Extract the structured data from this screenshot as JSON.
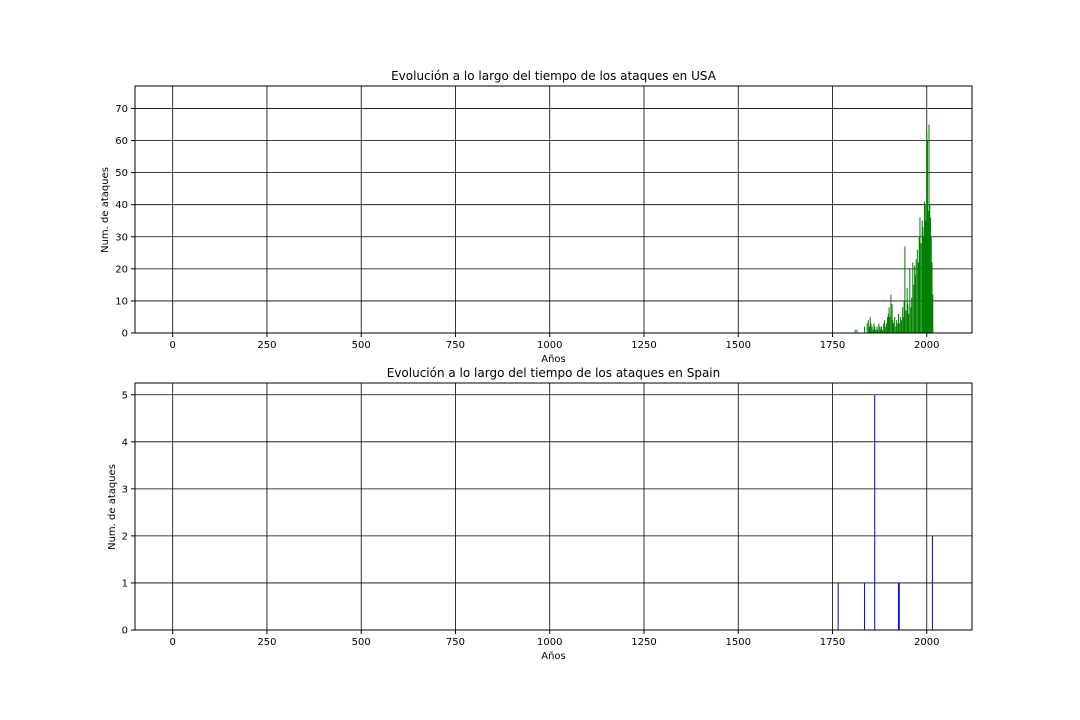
{
  "chart_data": [
    {
      "type": "bar",
      "title": "Evolución a lo largo del tiempo de los ataques en USA",
      "xlabel": "Años",
      "ylabel": "Num. de ataques",
      "xlim": [
        -100,
        2120
      ],
      "ylim": [
        0,
        77
      ],
      "xticks": [
        0,
        250,
        500,
        750,
        1000,
        1250,
        1500,
        1750,
        2000
      ],
      "yticks": [
        0,
        10,
        20,
        30,
        40,
        50,
        60,
        70
      ],
      "grid": true,
      "bar_color": "#008000",
      "x": [
        1810,
        1815,
        1835,
        1842,
        1845,
        1848,
        1850,
        1852,
        1855,
        1858,
        1860,
        1862,
        1865,
        1868,
        1870,
        1873,
        1876,
        1878,
        1880,
        1883,
        1886,
        1888,
        1890,
        1893,
        1896,
        1898,
        1900,
        1902,
        1905,
        1908,
        1910,
        1912,
        1915,
        1918,
        1920,
        1922,
        1925,
        1928,
        1930,
        1933,
        1936,
        1938,
        1940,
        1942,
        1945,
        1948,
        1950,
        1952,
        1955,
        1958,
        1960,
        1963,
        1966,
        1968,
        1970,
        1972,
        1975,
        1978,
        1980,
        1982,
        1985,
        1988,
        1990,
        1992,
        1994,
        1996,
        1998,
        2000,
        2002,
        2004,
        2006,
        2008,
        2010,
        2012,
        2014,
        2016
      ],
      "values": [
        1,
        1,
        2,
        3,
        4,
        2,
        5,
        3,
        2,
        1,
        3,
        2,
        1,
        2,
        1,
        3,
        2,
        1,
        2,
        1,
        3,
        4,
        2,
        3,
        5,
        6,
        8,
        5,
        12,
        9,
        4,
        3,
        5,
        2,
        4,
        3,
        6,
        3,
        5,
        4,
        8,
        5,
        10,
        27,
        7,
        14,
        9,
        6,
        20,
        8,
        11,
        22,
        15,
        21,
        18,
        23,
        26,
        22,
        30,
        36,
        28,
        35,
        33,
        30,
        41,
        40,
        35,
        63,
        60,
        38,
        65,
        40,
        36,
        30,
        22,
        12
      ]
    },
    {
      "type": "bar",
      "title": "Evolución a lo largo del tiempo de los ataques en Spain",
      "xlabel": "Años",
      "ylabel": "Num. de ataques",
      "xlim": [
        -100,
        2120
      ],
      "ylim": [
        0,
        5.25
      ],
      "xticks": [
        0,
        250,
        500,
        750,
        1000,
        1250,
        1500,
        1750,
        2000
      ],
      "yticks": [
        0,
        1,
        2,
        3,
        4,
        5
      ],
      "grid": true,
      "bar_color": "#0000ff",
      "x": [
        1765,
        1835,
        1862,
        1925,
        1927,
        2015
      ],
      "values": [
        1,
        1,
        5,
        1,
        1,
        2
      ]
    }
  ]
}
